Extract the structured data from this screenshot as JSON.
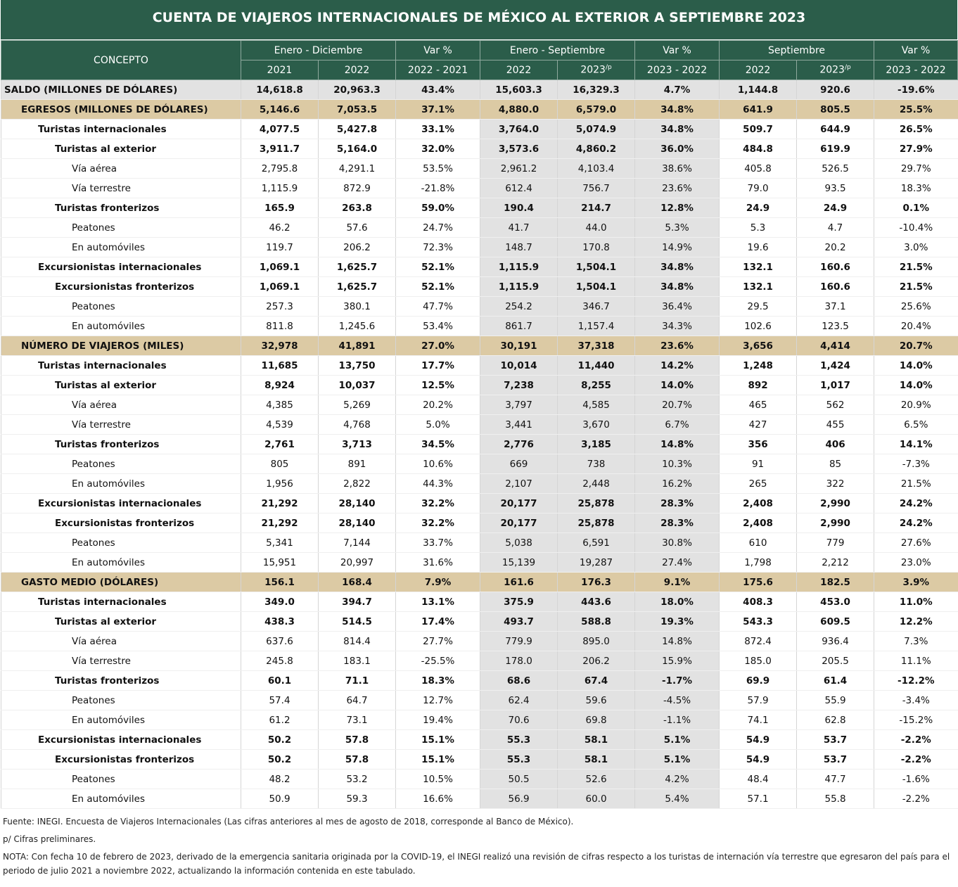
{
  "header": {
    "title": "CUENTA DE VIAJEROS INTERNACIONALES DE MÉXICO AL EXTERIOR A SEPTIEMBRE 2023",
    "concepto": "CONCEPTO",
    "groups": [
      {
        "label": "Enero - Diciembre",
        "columns": [
          {
            "label": "2021"
          },
          {
            "label": "2022"
          }
        ]
      },
      {
        "label": "Var %",
        "columns": [
          {
            "label": "2022 - 2021"
          }
        ]
      },
      {
        "label": "Enero - Septiembre",
        "columns": [
          {
            "label": "2022"
          },
          {
            "label": "2023",
            "sup": "/p"
          }
        ]
      },
      {
        "label": "Var %",
        "columns": [
          {
            "label": "2023 - 2022"
          }
        ]
      },
      {
        "label": "Septiembre",
        "columns": [
          {
            "label": "2022"
          },
          {
            "label": "2023",
            "sup": "/p"
          }
        ]
      },
      {
        "label": "Var %",
        "columns": [
          {
            "label": "2023 - 2022"
          }
        ]
      }
    ]
  },
  "table": {
    "rows": [
      {
        "concepto": "SALDO (MILLONES DE DÓLARES)",
        "values": [
          "14,618.8",
          "20,963.3",
          "43.4%",
          "15,603.3",
          "16,329.3",
          "4.7%",
          "1,144.8",
          "920.6",
          "-19.6%"
        ]
      },
      {
        "concepto": "EGRESOS (MILLONES DE DÓLARES)",
        "values": [
          "5,146.6",
          "7,053.5",
          "37.1%",
          "4,880.0",
          "6,579.0",
          "34.8%",
          "641.9",
          "805.5",
          "25.5%"
        ],
        "rows": [
          {
            "concepto": "Turistas internacionales",
            "values": [
              "4,077.5",
              "5,427.8",
              "33.1%",
              "3,764.0",
              "5,074.9",
              "34.8%",
              "509.7",
              "644.9",
              "26.5%"
            ],
            "rows": [
              {
                "concepto": "Turistas al exterior",
                "values": [
                  "3,911.7",
                  "5,164.0",
                  "32.0%",
                  "3,573.6",
                  "4,860.2",
                  "36.0%",
                  "484.8",
                  "619.9",
                  "27.9%"
                ],
                "rows": [
                  {
                    "concepto": "Vía aérea",
                    "values": [
                      "2,795.8",
                      "4,291.1",
                      "53.5%",
                      "2,961.2",
                      "4,103.4",
                      "38.6%",
                      "405.8",
                      "526.5",
                      "29.7%"
                    ]
                  },
                  {
                    "concepto": "Vía terrestre",
                    "values": [
                      "1,115.9",
                      "872.9",
                      "-21.8%",
                      "612.4",
                      "756.7",
                      "23.6%",
                      "79.0",
                      "93.5",
                      "18.3%"
                    ]
                  }
                ]
              },
              {
                "concepto": "Turistas fronterizos",
                "values": [
                  "165.9",
                  "263.8",
                  "59.0%",
                  "190.4",
                  "214.7",
                  "12.8%",
                  "24.9",
                  "24.9",
                  "0.1%"
                ],
                "rows": [
                  {
                    "concepto": "Peatones",
                    "values": [
                      "46.2",
                      "57.6",
                      "24.7%",
                      "41.7",
                      "44.0",
                      "5.3%",
                      "5.3",
                      "4.7",
                      "-10.4%"
                    ]
                  },
                  {
                    "concepto": "En automóviles",
                    "values": [
                      "119.7",
                      "206.2",
                      "72.3%",
                      "148.7",
                      "170.8",
                      "14.9%",
                      "19.6",
                      "20.2",
                      "3.0%"
                    ]
                  }
                ]
              }
            ]
          },
          {
            "concepto": "Excursionistas internacionales",
            "values": [
              "1,069.1",
              "1,625.7",
              "52.1%",
              "1,115.9",
              "1,504.1",
              "34.8%",
              "132.1",
              "160.6",
              "21.5%"
            ],
            "rows": [
              {
                "concepto": "Excursionistas fronterizos",
                "values": [
                  "1,069.1",
                  "1,625.7",
                  "52.1%",
                  "1,115.9",
                  "1,504.1",
                  "34.8%",
                  "132.1",
                  "160.6",
                  "21.5%"
                ],
                "rows": [
                  {
                    "concepto": "Peatones",
                    "values": [
                      "257.3",
                      "380.1",
                      "47.7%",
                      "254.2",
                      "346.7",
                      "36.4%",
                      "29.5",
                      "37.1",
                      "25.6%"
                    ]
                  },
                  {
                    "concepto": "En automóviles",
                    "values": [
                      "811.8",
                      "1,245.6",
                      "53.4%",
                      "861.7",
                      "1,157.4",
                      "34.3%",
                      "102.6",
                      "123.5",
                      "20.4%"
                    ]
                  }
                ]
              }
            ]
          }
        ]
      },
      {
        "concepto": "NÚMERO DE VIAJEROS (MILES)",
        "values": [
          "32,978",
          "41,891",
          "27.0%",
          "30,191",
          "37,318",
          "23.6%",
          "3,656",
          "4,414",
          "20.7%"
        ],
        "rows": [
          {
            "concepto": "Turistas internacionales",
            "values": [
              "11,685",
              "13,750",
              "17.7%",
              "10,014",
              "11,440",
              "14.2%",
              "1,248",
              "1,424",
              "14.0%"
            ],
            "rows": [
              {
                "concepto": "Turistas al exterior",
                "values": [
                  "8,924",
                  "10,037",
                  "12.5%",
                  "7,238",
                  "8,255",
                  "14.0%",
                  "892",
                  "1,017",
                  "14.0%"
                ],
                "rows": [
                  {
                    "concepto": "Vía aérea",
                    "values": [
                      "4,385",
                      "5,269",
                      "20.2%",
                      "3,797",
                      "4,585",
                      "20.7%",
                      "465",
                      "562",
                      "20.9%"
                    ]
                  },
                  {
                    "concepto": "Vía terrestre",
                    "values": [
                      "4,539",
                      "4,768",
                      "5.0%",
                      "3,441",
                      "3,670",
                      "6.7%",
                      "427",
                      "455",
                      "6.5%"
                    ]
                  }
                ]
              },
              {
                "concepto": "Turistas fronterizos",
                "values": [
                  "2,761",
                  "3,713",
                  "34.5%",
                  "2,776",
                  "3,185",
                  "14.8%",
                  "356",
                  "406",
                  "14.1%"
                ],
                "rows": [
                  {
                    "concepto": "Peatones",
                    "values": [
                      "805",
                      "891",
                      "10.6%",
                      "669",
                      "738",
                      "10.3%",
                      "91",
                      "85",
                      "-7.3%"
                    ]
                  },
                  {
                    "concepto": "En automóviles",
                    "values": [
                      "1,956",
                      "2,822",
                      "44.3%",
                      "2,107",
                      "2,448",
                      "16.2%",
                      "265",
                      "322",
                      "21.5%"
                    ]
                  }
                ]
              }
            ]
          },
          {
            "concepto": "Excursionistas internacionales",
            "values": [
              "21,292",
              "28,140",
              "32.2%",
              "20,177",
              "25,878",
              "28.3%",
              "2,408",
              "2,990",
              "24.2%"
            ],
            "rows": [
              {
                "concepto": "Excursionistas fronterizos",
                "values": [
                  "21,292",
                  "28,140",
                  "32.2%",
                  "20,177",
                  "25,878",
                  "28.3%",
                  "2,408",
                  "2,990",
                  "24.2%"
                ],
                "rows": [
                  {
                    "concepto": "Peatones",
                    "values": [
                      "5,341",
                      "7,144",
                      "33.7%",
                      "5,038",
                      "6,591",
                      "30.8%",
                      "610",
                      "779",
                      "27.6%"
                    ]
                  },
                  {
                    "concepto": "En automóviles",
                    "values": [
                      "15,951",
                      "20,997",
                      "31.6%",
                      "15,139",
                      "19,287",
                      "27.4%",
                      "1,798",
                      "2,212",
                      "23.0%"
                    ]
                  }
                ]
              }
            ]
          }
        ]
      },
      {
        "concepto": "GASTO MEDIO (DÓLARES)",
        "values": [
          "156.1",
          "168.4",
          "7.9%",
          "161.6",
          "176.3",
          "9.1%",
          "175.6",
          "182.5",
          "3.9%"
        ],
        "rows": [
          {
            "concepto": "Turistas internacionales",
            "values": [
              "349.0",
              "394.7",
              "13.1%",
              "375.9",
              "443.6",
              "18.0%",
              "408.3",
              "453.0",
              "11.0%"
            ],
            "rows": [
              {
                "concepto": "Turistas al exterior",
                "values": [
                  "438.3",
                  "514.5",
                  "17.4%",
                  "493.7",
                  "588.8",
                  "19.3%",
                  "543.3",
                  "609.5",
                  "12.2%"
                ],
                "rows": [
                  {
                    "concepto": "Vía aérea",
                    "values": [
                      "637.6",
                      "814.4",
                      "27.7%",
                      "779.9",
                      "895.0",
                      "14.8%",
                      "872.4",
                      "936.4",
                      "7.3%"
                    ]
                  },
                  {
                    "concepto": "Vía terrestre",
                    "values": [
                      "245.8",
                      "183.1",
                      "-25.5%",
                      "178.0",
                      "206.2",
                      "15.9%",
                      "185.0",
                      "205.5",
                      "11.1%"
                    ]
                  }
                ]
              },
              {
                "concepto": "Turistas fronterizos",
                "values": [
                  "60.1",
                  "71.1",
                  "18.3%",
                  "68.6",
                  "67.4",
                  "-1.7%",
                  "69.9",
                  "61.4",
                  "-12.2%"
                ],
                "rows": [
                  {
                    "concepto": "Peatones",
                    "values": [
                      "57.4",
                      "64.7",
                      "12.7%",
                      "62.4",
                      "59.6",
                      "-4.5%",
                      "57.9",
                      "55.9",
                      "-3.4%"
                    ]
                  },
                  {
                    "concepto": "En automóviles",
                    "values": [
                      "61.2",
                      "73.1",
                      "19.4%",
                      "70.6",
                      "69.8",
                      "-1.1%",
                      "74.1",
                      "62.8",
                      "-15.2%"
                    ]
                  }
                ]
              }
            ]
          },
          {
            "concepto": "Excursionistas internacionales",
            "values": [
              "50.2",
              "57.8",
              "15.1%",
              "55.3",
              "58.1",
              "5.1%",
              "54.9",
              "53.7",
              "-2.2%"
            ],
            "rows": [
              {
                "concepto": "Excursionistas fronterizos",
                "values": [
                  "50.2",
                  "57.8",
                  "15.1%",
                  "55.3",
                  "58.1",
                  "5.1%",
                  "54.9",
                  "53.7",
                  "-2.2%"
                ],
                "rows": [
                  {
                    "concepto": "Peatones",
                    "values": [
                      "48.2",
                      "53.2",
                      "10.5%",
                      "50.5",
                      "52.6",
                      "4.2%",
                      "48.4",
                      "47.7",
                      "-1.6%"
                    ]
                  },
                  {
                    "concepto": "En automóviles",
                    "values": [
                      "50.9",
                      "59.3",
                      "16.6%",
                      "56.9",
                      "60.0",
                      "5.4%",
                      "57.1",
                      "55.8",
                      "-2.2%"
                    ]
                  }
                ]
              }
            ]
          }
        ]
      }
    ]
  },
  "notes": [
    "Fuente: INEGI. Encuesta de Viajeros Internacionales (Las cifras anteriores al mes de agosto de 2018, corresponde al Banco de México).",
    "p/ Cifras preliminares.",
    "NOTA: Con fecha 10 de febrero de 2023, derivado de la emergencia sanitaria originada por la COVID-19, el INEGI realizó una revisión de cifras respecto a los turistas de internación vía terrestre que egresaron del país para el periodo de julio 2021 a noviembre 2022, actualizando la información contenida en este tabulado."
  ]
}
